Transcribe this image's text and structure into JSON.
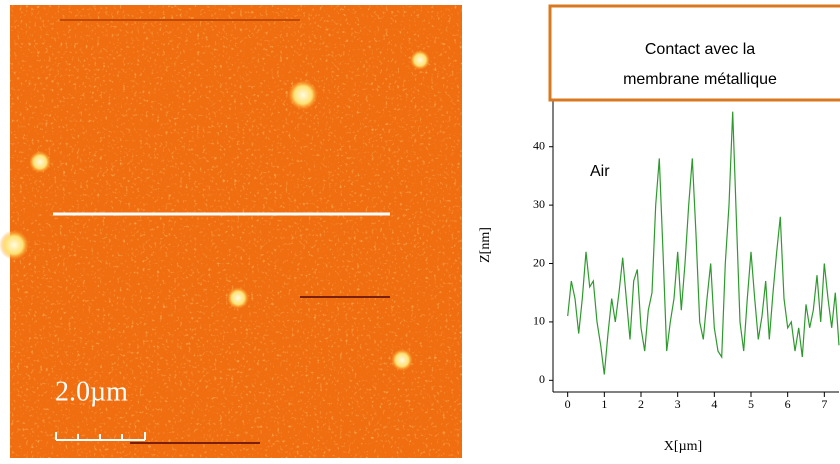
{
  "afm_image": {
    "scale_bar_label": "2.0µm"
  },
  "chart_data": {
    "type": "line",
    "box_text": [
      "Contact avec la",
      "membrane métallique"
    ],
    "annotation": "Air",
    "xlabel": "X[µm]",
    "ylabel": "Z[nm]",
    "color": "#2e9a2e",
    "x": [
      0,
      0.1,
      0.2,
      0.3,
      0.4,
      0.5,
      0.6,
      0.7,
      0.8,
      0.9,
      1.0,
      1.1,
      1.2,
      1.3,
      1.4,
      1.5,
      1.6,
      1.7,
      1.8,
      1.9,
      2.0,
      2.1,
      2.2,
      2.3,
      2.4,
      2.5,
      2.6,
      2.7,
      2.8,
      2.9,
      3.0,
      3.1,
      3.2,
      3.3,
      3.4,
      3.5,
      3.6,
      3.7,
      3.8,
      3.9,
      4.0,
      4.1,
      4.2,
      4.3,
      4.4,
      4.5,
      4.6,
      4.7,
      4.8,
      4.9,
      5.0,
      5.1,
      5.2,
      5.3,
      5.4,
      5.5,
      5.6,
      5.7,
      5.8,
      5.9,
      6.0,
      6.1,
      6.2,
      6.3,
      6.4,
      6.5,
      6.6,
      6.7,
      6.8,
      6.9,
      7.0,
      7.1,
      7.2,
      7.3,
      7.4
    ],
    "values": [
      11,
      17,
      14,
      8,
      14,
      22,
      16,
      17,
      10,
      6,
      1,
      8,
      14,
      10,
      15,
      21,
      14,
      7,
      17,
      19,
      9,
      5,
      12,
      15,
      30,
      38,
      22,
      5,
      10,
      14,
      22,
      12,
      20,
      30,
      38,
      25,
      10,
      7,
      14,
      20,
      9,
      5,
      4,
      20,
      30,
      46,
      28,
      10,
      5,
      14,
      22,
      14,
      7,
      11,
      17,
      7,
      15,
      22,
      28,
      14,
      9,
      10,
      5,
      9,
      4,
      13,
      9,
      12,
      18,
      10,
      20,
      14,
      9,
      15,
      6
    ],
    "xlim": [
      -0.4,
      7.4
    ],
    "ylim": [
      -2,
      48
    ],
    "xticks": [
      0,
      1,
      2,
      3,
      4,
      5,
      6,
      7
    ],
    "yticks": [
      0,
      10,
      20,
      30,
      40
    ]
  }
}
